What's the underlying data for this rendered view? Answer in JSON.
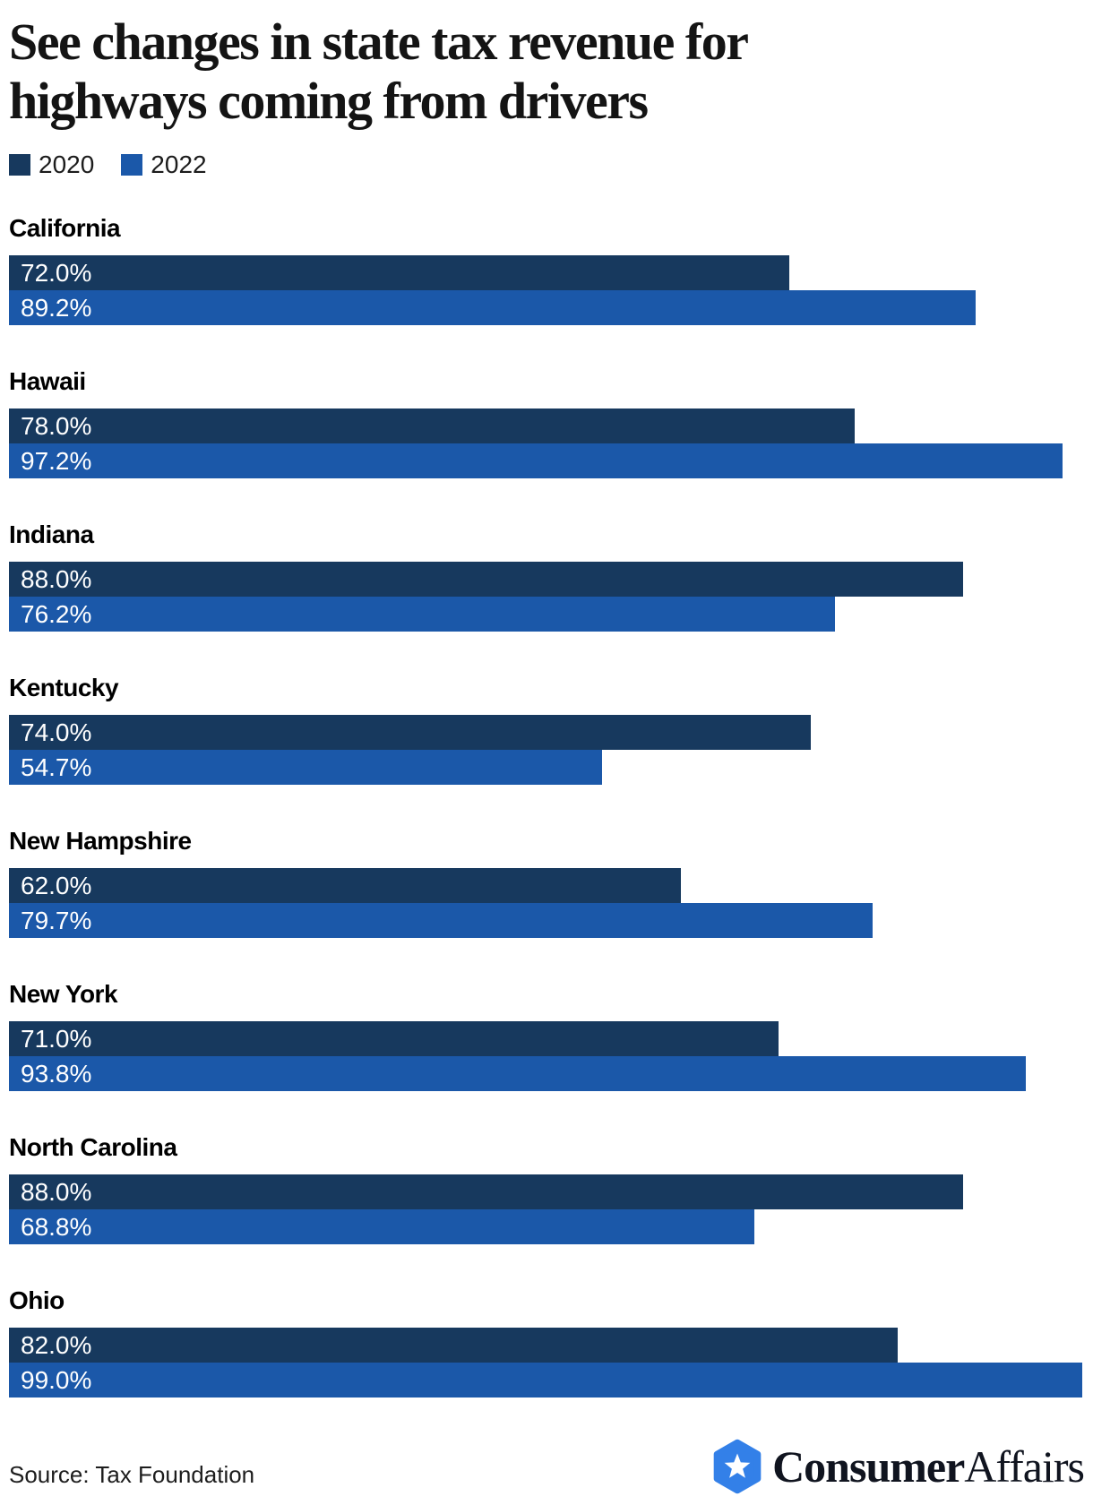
{
  "title": {
    "text": "See changes in state tax revenue for highways coming from drivers",
    "lines": [
      "See changes in state tax revenue for",
      "highways coming from drivers"
    ]
  },
  "legend": [
    {
      "label": "2020",
      "color": "#17395E"
    },
    {
      "label": "2022",
      "color": "#1B58A9"
    }
  ],
  "chart_data": {
    "type": "bar",
    "orientation": "horizontal",
    "title": "See changes in state tax revenue for highways coming from drivers",
    "categories": [
      "California",
      "Hawaii",
      "Indiana",
      "Kentucky",
      "New Hampshire",
      "New York",
      "North Carolina",
      "Ohio"
    ],
    "series": [
      {
        "name": "2020",
        "color": "#17395E",
        "values": [
          72.0,
          78.0,
          88.0,
          74.0,
          62.0,
          71.0,
          88.0,
          82.0
        ]
      },
      {
        "name": "2022",
        "color": "#1B58A9",
        "values": [
          89.2,
          97.2,
          76.2,
          54.7,
          79.7,
          93.8,
          68.8,
          99.0
        ]
      }
    ],
    "bar_labels": [
      [
        "72.0%",
        "89.2%"
      ],
      [
        "78.0%",
        "97.2%"
      ],
      [
        "88.0%",
        "76.2%"
      ],
      [
        "74.0%",
        "54.7%"
      ],
      [
        "62.0%",
        "79.7%"
      ],
      [
        "71.0%",
        "93.8%"
      ],
      [
        "88.0%",
        "68.8%"
      ],
      [
        "82.0%",
        "99.0%"
      ]
    ],
    "value_suffix": "%",
    "xlim": [
      0,
      100
    ],
    "grid": false,
    "legend_position": "top-left"
  },
  "footer": {
    "source": "Source: Tax Foundation",
    "brand": {
      "name": "ConsumerAffairs",
      "bold": "Consumer",
      "regular": "Affairs",
      "icon": "hexagon-star-icon",
      "icon_color": "#3380E8",
      "star_color": "#FFFFFF",
      "text_color": "#10141F"
    }
  }
}
